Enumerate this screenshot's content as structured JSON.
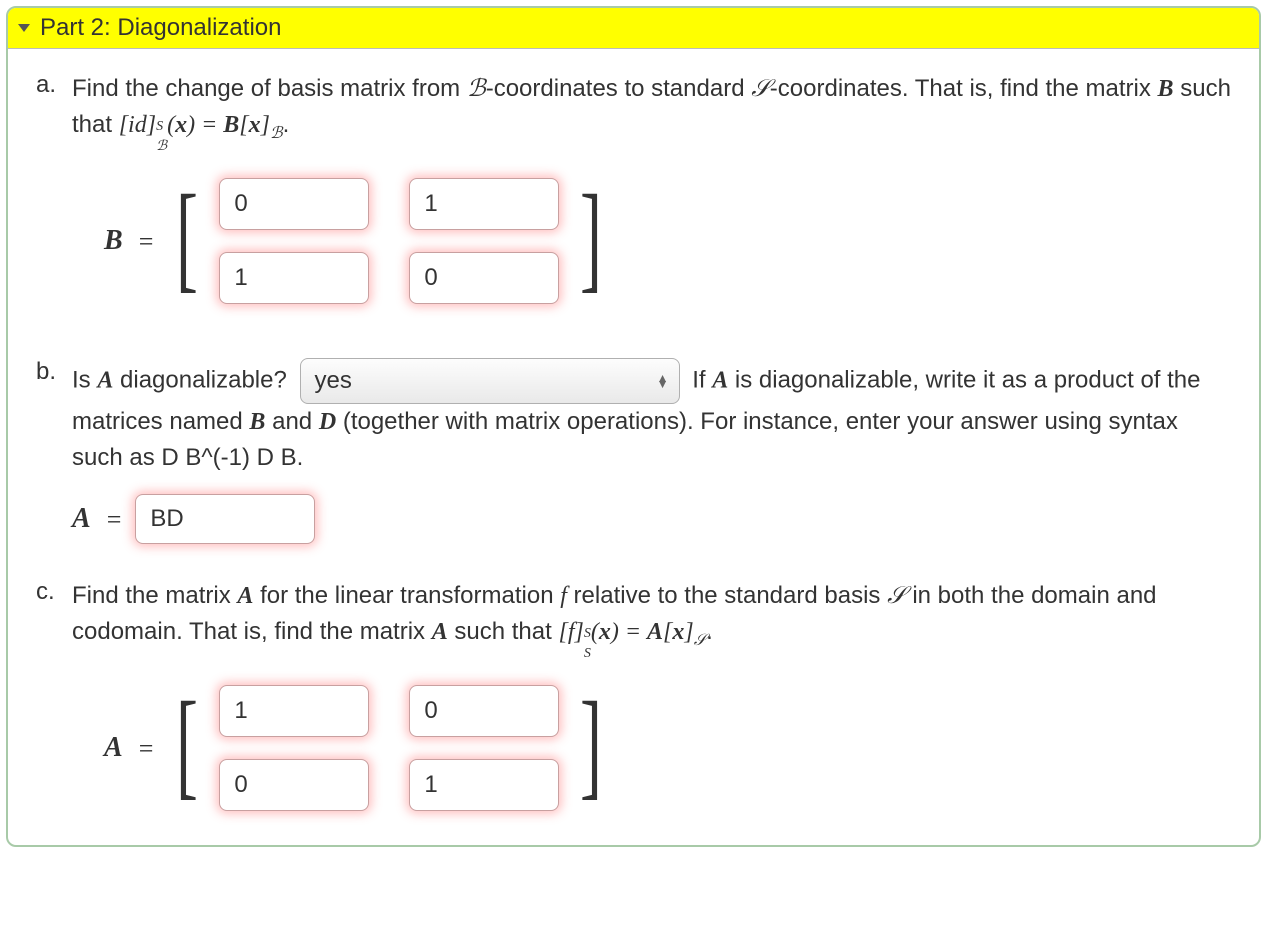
{
  "header": {
    "title": "Part 2: Diagonalization"
  },
  "partA": {
    "letter": "a.",
    "text1": "Find the change of basis matrix from ",
    "text2": "-coordinates to standard ",
    "text3": "-coordinates. That is, find the matrix ",
    "text4": " such that ",
    "text5": ".",
    "B_label": "B",
    "B_sym": "ℬ",
    "S_sym": "𝒮",
    "id_lbracket": "[",
    "id_text": "id",
    "id_rbracket": "]",
    "sup": "S",
    "sub": "ℬ",
    "xarg": "(x)",
    "eqs": " = ",
    "Bx_B": "B",
    "Bx_l": "[",
    "Bx_x": "x",
    "Bx_r": "]",
    "Bx_sub": "ℬ",
    "matrix": {
      "label": "B",
      "equals": "=",
      "cells": [
        "0",
        "1",
        "1",
        "0"
      ]
    }
  },
  "partB": {
    "letter": "b.",
    "text1": "Is ",
    "text2": " diagonalizable?",
    "select_value": "yes",
    "text3": " If ",
    "text4": " is diagonalizable, write it as a product of the matrices named ",
    "text5": " and ",
    "text6": " (together with matrix operations). For instance, enter your answer using syntax such as ",
    "syntax": "D B^(-1) D B",
    "text7": ".",
    "A_sym": "A",
    "B_sym": "B",
    "D_sym": "D",
    "A_eq": {
      "label": "A",
      "equals": "=",
      "value": "BD"
    }
  },
  "partC": {
    "letter": "c.",
    "text1": "Find the matrix ",
    "text2": " for the linear transformation ",
    "text3": " relative to the standard basis ",
    "text4": " in both the domain and codomain. That is, find the matrix ",
    "text5": " such that ",
    "text6": ".",
    "A_sym": "A",
    "f_sym": "f",
    "S_sym": "𝒮",
    "f_l": "[",
    "f_txt": "f",
    "f_r": "]",
    "sup": "S",
    "sub": "S",
    "xarg": "(x)",
    "eqs": " = ",
    "Ax_A": "A",
    "Ax_l": "[",
    "Ax_x": "x",
    "Ax_r": "]",
    "Ax_sub": "𝒮",
    "matrix": {
      "label": "A",
      "equals": "=",
      "cells": [
        "1",
        "0",
        "0",
        "1"
      ]
    }
  }
}
